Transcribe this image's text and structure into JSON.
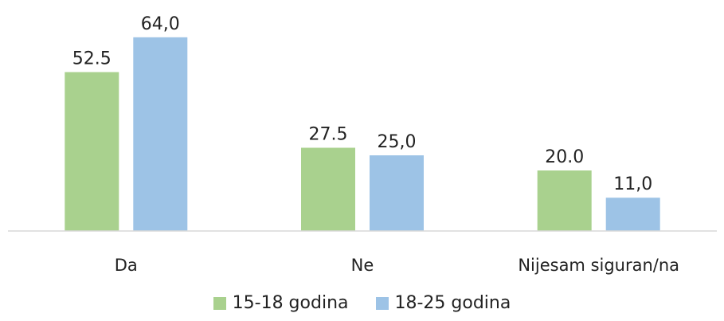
{
  "chart_data": {
    "type": "bar",
    "categories": [
      "Da",
      "Ne",
      "Nijesam siguran/na"
    ],
    "series": [
      {
        "name": "15-18 godina",
        "values": [
          52.5,
          27.5,
          20.0
        ],
        "labels": [
          "52.5",
          "27.5",
          "20.0"
        ],
        "color": "#a9d18e"
      },
      {
        "name": "18-25 godina",
        "values": [
          64.0,
          25.0,
          11.0
        ],
        "labels": [
          "64,0",
          "25,0",
          "11,0"
        ],
        "color": "#9dc3e6"
      }
    ],
    "ylim": [
      0,
      70
    ],
    "grid": false,
    "legend_position": "bottom",
    "axis_color": "#d9d9d9",
    "text_color": "#222222"
  }
}
